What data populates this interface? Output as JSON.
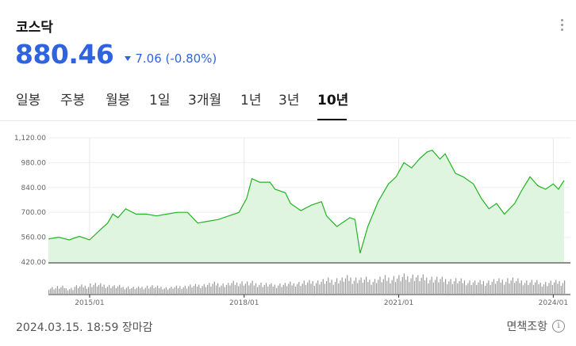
{
  "header": {
    "title": "코스닥"
  },
  "quote": {
    "price": "880.46",
    "change": "7.06 (-0.80%)",
    "direction": "down",
    "color": "#2f63e0"
  },
  "tabs": [
    {
      "label": "일봉",
      "active": false
    },
    {
      "label": "주봉",
      "active": false
    },
    {
      "label": "월봉",
      "active": false
    },
    {
      "label": "1일",
      "active": false
    },
    {
      "label": "3개월",
      "active": false
    },
    {
      "label": "1년",
      "active": false
    },
    {
      "label": "3년",
      "active": false
    },
    {
      "label": "10년",
      "active": true
    }
  ],
  "footer": {
    "timestamp": "2024.03.15. 18:59 장마감",
    "disclaimer": "면책조항",
    "info_icon": "info-icon"
  },
  "chart_data": {
    "type": "area",
    "ylim": [
      420,
      1120
    ],
    "yticks": [
      "1,120.00",
      "980.00",
      "840.00",
      "700.00",
      "560.00",
      "420.00"
    ],
    "yticks_values": [
      1120,
      980,
      840,
      700,
      560,
      420
    ],
    "xticks": [
      "2015/01",
      "2018/01",
      "2021/01",
      "2024/01"
    ],
    "xticks_values": [
      2015.0,
      2018.0,
      2021.0,
      2024.0
    ],
    "xlim": [
      2014.2,
      2024.21
    ],
    "grid": true,
    "line_color": "#22b422",
    "fill_color": "#dff5df",
    "series": [
      {
        "x": [
          2014.2,
          2014.4,
          2014.6,
          2014.8,
          2015.0,
          2015.2,
          2015.35,
          2015.45,
          2015.55,
          2015.7,
          2015.9,
          2016.1,
          2016.3,
          2016.5,
          2016.7,
          2016.9,
          2017.1,
          2017.3,
          2017.5,
          2017.7,
          2017.9,
          2018.05,
          2018.15,
          2018.3,
          2018.5,
          2018.6,
          2018.8,
          2018.9,
          2019.1,
          2019.3,
          2019.5,
          2019.6,
          2019.8,
          2019.95,
          2020.05,
          2020.15,
          2020.25,
          2020.4,
          2020.6,
          2020.8,
          2020.95,
          2021.1,
          2021.25,
          2021.4,
          2021.55,
          2021.65,
          2021.8,
          2021.9,
          2022.1,
          2022.25,
          2022.45,
          2022.6,
          2022.75,
          2022.9,
          2023.05,
          2023.25,
          2023.4,
          2023.55,
          2023.7,
          2023.85,
          2024.0,
          2024.1,
          2024.21
        ],
        "values": [
          550,
          560,
          545,
          565,
          545,
          600,
          640,
          690,
          670,
          720,
          690,
          690,
          680,
          690,
          700,
          700,
          640,
          650,
          660,
          680,
          700,
          780,
          890,
          870,
          870,
          830,
          810,
          750,
          710,
          740,
          760,
          680,
          620,
          650,
          670,
          660,
          470,
          620,
          760,
          860,
          900,
          980,
          950,
          1000,
          1040,
          1050,
          1000,
          1030,
          920,
          900,
          860,
          780,
          720,
          750,
          690,
          750,
          830,
          900,
          850,
          830,
          860,
          830,
          880
        ]
      }
    ],
    "volume": [
      20,
      22,
      18,
      24,
      25,
      30,
      28,
      26,
      24,
      22,
      20,
      22,
      24,
      22,
      20,
      22,
      24,
      26,
      28,
      30,
      32,
      30,
      34,
      36,
      34,
      32,
      30,
      28,
      30,
      32,
      34,
      36,
      38,
      40,
      42,
      44,
      48,
      46,
      44,
      42,
      46,
      48,
      50,
      52,
      54,
      50,
      48,
      46,
      44,
      42,
      40,
      38,
      36,
      38,
      40,
      42,
      44,
      40,
      38,
      36,
      34,
      36,
      38
    ]
  }
}
